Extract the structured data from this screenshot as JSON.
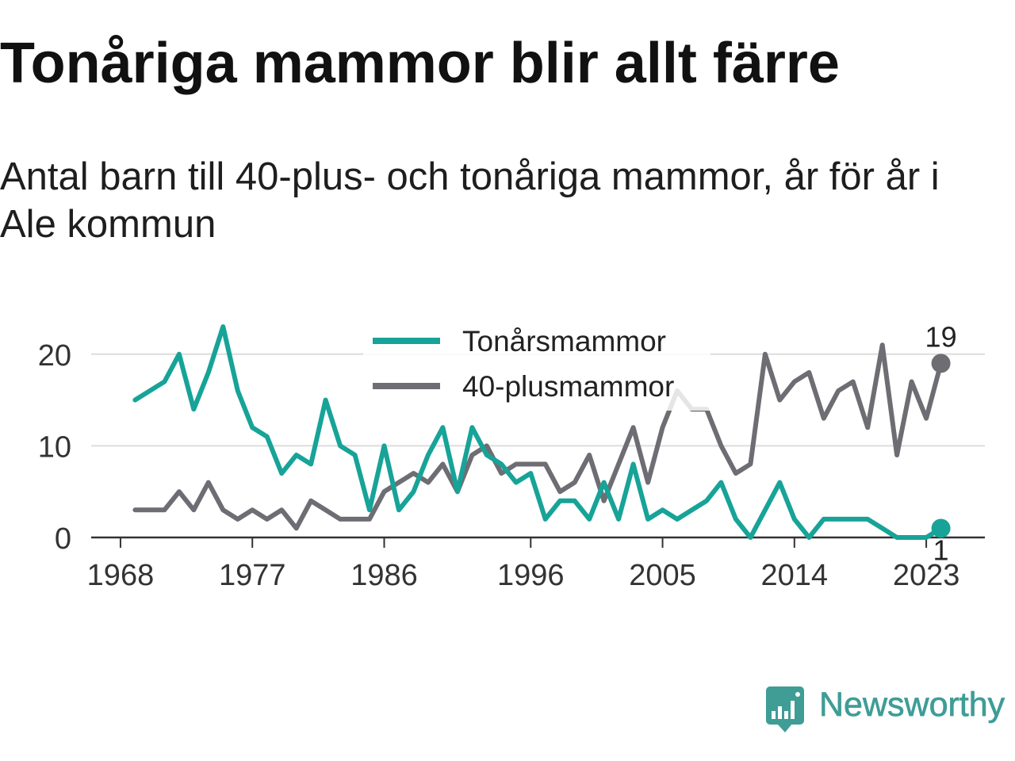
{
  "chart_data": {
    "type": "line",
    "title": "Tonåriga mammor blir allt färre",
    "subtitle": "Antal barn till 40-plus- och tonåriga mammor, år för år i Ale kommun",
    "x": [
      1969,
      1970,
      1971,
      1972,
      1973,
      1974,
      1975,
      1976,
      1977,
      1978,
      1979,
      1980,
      1981,
      1982,
      1983,
      1984,
      1985,
      1986,
      1987,
      1988,
      1989,
      1990,
      1991,
      1992,
      1993,
      1994,
      1995,
      1996,
      1997,
      1998,
      1999,
      2000,
      2001,
      2002,
      2003,
      2004,
      2005,
      2006,
      2007,
      2008,
      2009,
      2010,
      2011,
      2012,
      2013,
      2014,
      2015,
      2016,
      2017,
      2018,
      2019,
      2020,
      2021,
      2022,
      2023,
      2024
    ],
    "x_ticks": [
      1968,
      1977,
      1986,
      1996,
      2005,
      2014,
      2023
    ],
    "y_ticks": [
      0,
      10,
      20
    ],
    "xlim": [
      1966,
      2027
    ],
    "ylim": [
      0,
      25
    ],
    "grid": "horizontal",
    "legend": "top-center",
    "series": [
      {
        "name": "Tonårsmammor",
        "color": "#17a398",
        "values": [
          15,
          16,
          17,
          20,
          14,
          18,
          23,
          16,
          12,
          11,
          7,
          9,
          8,
          15,
          10,
          9,
          3,
          10,
          3,
          5,
          9,
          12,
          5,
          12,
          9,
          8,
          6,
          7,
          2,
          4,
          4,
          2,
          6,
          2,
          8,
          2,
          3,
          2,
          3,
          4,
          6,
          2,
          0,
          3,
          6,
          2,
          0,
          2,
          2,
          2,
          2,
          1,
          0,
          0,
          0,
          1
        ]
      },
      {
        "name": "40-plusmammor",
        "color": "#6e6d73",
        "values": [
          3,
          3,
          3,
          5,
          3,
          6,
          3,
          2,
          3,
          2,
          3,
          1,
          4,
          3,
          2,
          2,
          2,
          5,
          6,
          7,
          6,
          8,
          5,
          9,
          10,
          7,
          8,
          8,
          8,
          5,
          6,
          9,
          4,
          8,
          12,
          6,
          12,
          16,
          14,
          14,
          10,
          7,
          8,
          20,
          15,
          17,
          18,
          13,
          16,
          17,
          12,
          21,
          9,
          17,
          13,
          19
        ]
      }
    ]
  },
  "branding": {
    "name": "Newsworthy",
    "color": "#3f9d96",
    "icon": "newsworthy-logo-icon"
  }
}
